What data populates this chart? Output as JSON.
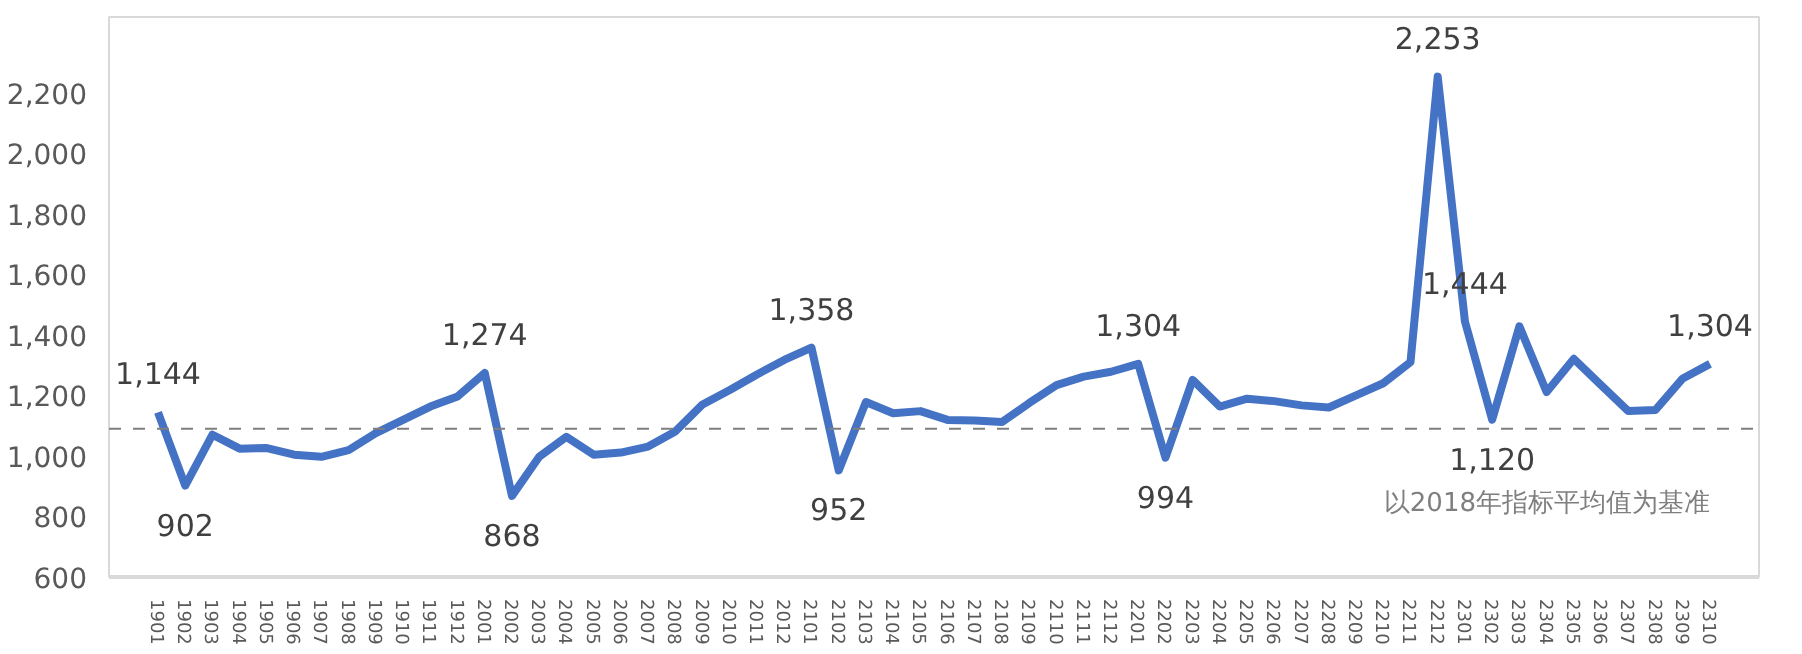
{
  "chart_data": {
    "type": "line",
    "categories": [
      "1901",
      "1902",
      "1903",
      "1904",
      "1905",
      "1906",
      "1907",
      "1908",
      "1909",
      "1910",
      "1911",
      "1912",
      "2001",
      "2002",
      "2003",
      "2004",
      "2005",
      "2006",
      "2007",
      "2008",
      "2009",
      "2010",
      "2011",
      "2012",
      "2101",
      "2102",
      "2103",
      "2104",
      "2105",
      "2106",
      "2107",
      "2108",
      "2109",
      "2110",
      "2111",
      "2112",
      "2201",
      "2202",
      "2203",
      "2204",
      "2205",
      "2206",
      "2207",
      "2208",
      "2209",
      "2210",
      "2211",
      "2212",
      "2301",
      "2302",
      "2303",
      "2304",
      "2305",
      "2306",
      "2307",
      "2308",
      "2309",
      "2310"
    ],
    "series": [
      {
        "color": "#4472c4",
        "values": [
          1144,
          902,
          1070,
          1024,
          1026,
          1004,
          997,
          1019,
          1075,
          1119,
          1163,
          1196,
          1274,
          868,
          997,
          1063,
          1004,
          1011,
          1031,
          1081,
          1170,
          1218,
          1269,
          1317,
          1358,
          952,
          1178,
          1141,
          1148,
          1119,
          1117,
          1112,
          1175,
          1234,
          1262,
          1278,
          1304,
          994,
          1251,
          1163,
          1189,
          1181,
          1167,
          1160,
          1200,
          1240,
          1310,
          2253,
          1444,
          1120,
          1428,
          1211,
          1321,
          1234,
          1148,
          1152,
          1256,
          1304
        ],
        "value_labels": [
          "1,144",
          "902",
          null,
          null,
          null,
          null,
          null,
          null,
          null,
          null,
          null,
          null,
          "1,274",
          "868",
          null,
          null,
          null,
          null,
          null,
          null,
          null,
          null,
          null,
          null,
          "1,358",
          "952",
          null,
          null,
          null,
          null,
          null,
          null,
          null,
          null,
          null,
          null,
          "1,304",
          "994",
          null,
          null,
          null,
          null,
          null,
          null,
          null,
          null,
          null,
          "2,253",
          "1,444",
          "1,120",
          null,
          null,
          null,
          null,
          null,
          null,
          null,
          "1,304"
        ]
      }
    ],
    "ylim": [
      600,
      2450
    ],
    "yticks": [
      {
        "value": 600,
        "label": "600"
      },
      {
        "value": 800,
        "label": "800"
      },
      {
        "value": 1000,
        "label": "1,000"
      },
      {
        "value": 1200,
        "label": "1,200"
      },
      {
        "value": 1400,
        "label": "1,400"
      },
      {
        "value": 1600,
        "label": "1,600"
      },
      {
        "value": 1800,
        "label": "1,800"
      },
      {
        "value": 2000,
        "label": "2,000"
      },
      {
        "value": 2200,
        "label": "2,200"
      }
    ],
    "ref_lines": [
      {
        "axis": "y",
        "value": 1090,
        "label": "以2018年指标平均值为基准",
        "color": "#7f7f7f",
        "line_style": "dashed"
      }
    ],
    "grid": false,
    "marker": "none",
    "line_style": "solid"
  }
}
